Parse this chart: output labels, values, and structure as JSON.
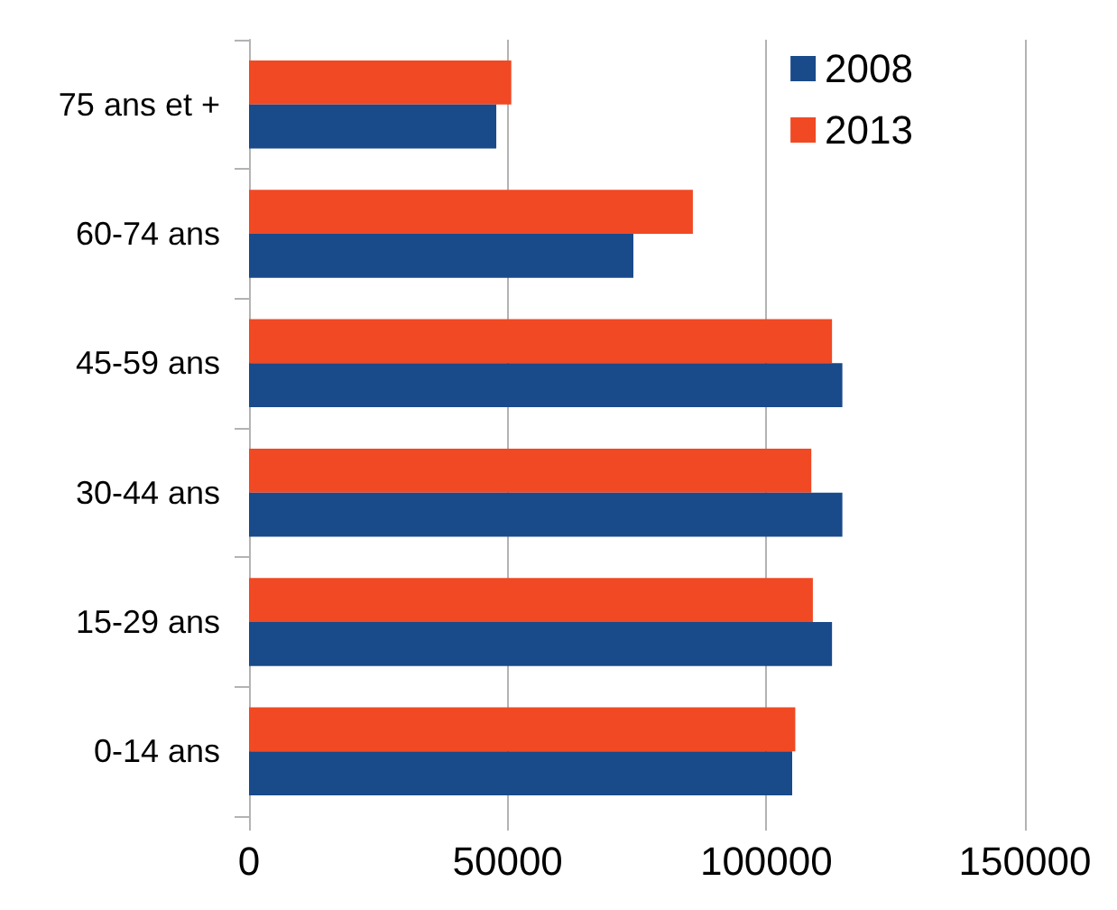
{
  "chart_data": {
    "type": "bar",
    "orientation": "horizontal",
    "categories": [
      "75 ans et +",
      "60-74 ans",
      "45-59 ans",
      "30-44 ans",
      "15-29 ans",
      "0-14 ans"
    ],
    "series": [
      {
        "name": "2008",
        "color": "#194a8a",
        "values": [
          47800,
          74300,
          114700,
          114700,
          112700,
          105000
        ]
      },
      {
        "name": "2013",
        "color": "#f04924",
        "values": [
          50700,
          85800,
          112700,
          108700,
          109000,
          105600
        ]
      }
    ],
    "xlim": [
      0,
      150000
    ],
    "xticks": [
      0,
      50000,
      100000,
      150000
    ],
    "grid": "x",
    "legend": "top right"
  }
}
